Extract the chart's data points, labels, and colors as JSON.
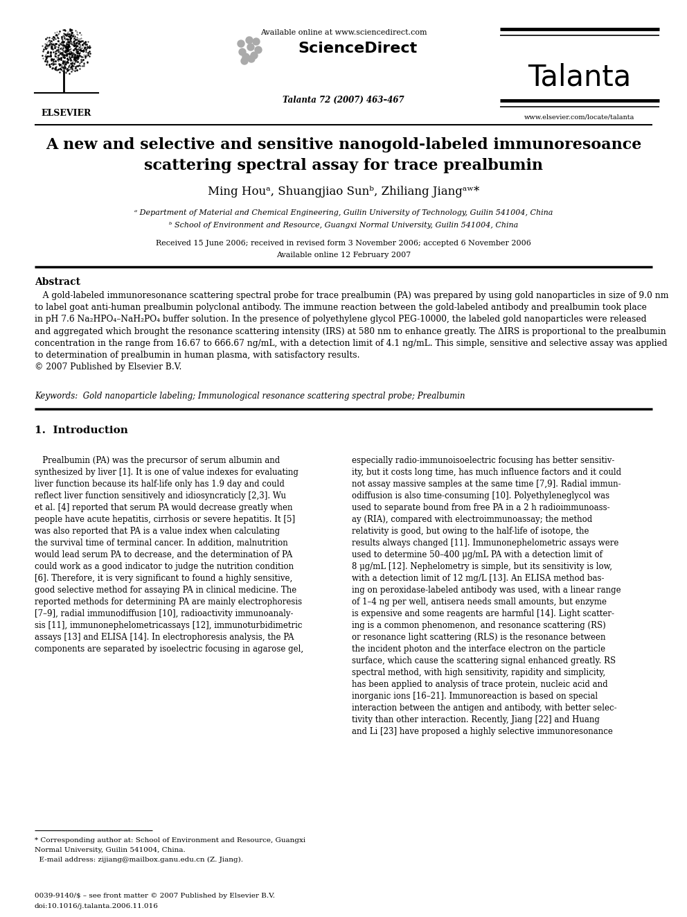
{
  "bg_color": "#ffffff",
  "available_online_header": "Available online at www.sciencedirect.com",
  "sciencedirect_text": "ScienceDirect",
  "journal_name": "Talanta",
  "journal_info": "Talanta 72 (2007) 463–467",
  "website": "www.elsevier.com/locate/talanta",
  "elsevier_text": "ELSEVIER",
  "title_line1": "A new and selective and sensitive nanogold-labeled immunoresoance",
  "title_line2": "scattering spectral assay for trace prealbumin",
  "authors_line": "Ming Houᵃ, Shuangjiao Sunᵇ, Zhiliang Jiangᵃʷ*",
  "affil_a": "ᵃ Department of Material and Chemical Engineering, Guilin University of Technology, Guilin 541004, China",
  "affil_b": "ᵇ School of Environment and Resource, Guangxi Normal University, Guilin 541004, China",
  "date_line": "Received 15 June 2006; received in revised form 3 November 2006; accepted 6 November 2006",
  "online_line": "Available online 12 February 2007",
  "abstract_head": "Abstract",
  "abstract_body": "   A gold-labeled immunoresonance scattering spectral probe for trace prealbumin (PA) was prepared by using gold nanoparticles in size of 9.0 nm\nto label goat anti-human prealbumin polyclonal antibody. The immune reaction between the gold-labeled antibody and prealbumin took place\nin pH 7.6 Na₂HPO₄–NaH₂PO₄ buffer solution. In the presence of polyethylene glycol PEG-10000, the labeled gold nanoparticles were released\nand aggregated which brought the resonance scattering intensity (IRS) at 580 nm to enhance greatly. The ΔIRS is proportional to the prealbumin\nconcentration in the range from 16.67 to 666.67 ng/mL, with a detection limit of 4.1 ng/mL. This simple, sensitive and selective assay was applied\nto determination of prealbumin in human plasma, with satisfactory results.\n© 2007 Published by Elsevier B.V.",
  "kw_line": "Keywords:  Gold nanoparticle labeling; Immunological resonance scattering spectral probe; Prealbumin",
  "sec1_head": "1.  Introduction",
  "left_col": "   Prealbumin (PA) was the precursor of serum albumin and\nsynthesized by liver [1]. It is one of value indexes for evaluating\nliver function because its half-life only has 1.9 day and could\nreflect liver function sensitively and idiosyncraticly [2,3]. Wu\net al. [4] reported that serum PA would decrease greatly when\npeople have acute hepatitis, cirrhosis or severe hepatitis. It [5]\nwas also reported that PA is a value index when calculating\nthe survival time of terminal cancer. In addition, malnutrition\nwould lead serum PA to decrease, and the determination of PA\ncould work as a good indicator to judge the nutrition condition\n[6]. Therefore, it is very significant to found a highly sensitive,\ngood selective method for assaying PA in clinical medicine. The\nreported methods for determining PA are mainly electrophoresis\n[7–9], radial immunodiffusion [10], radioactivity immunoanaly-\nsis [11], immunonephelometricassays [12], immunoturbidimetric\nassays [13] and ELISA [14]. In electrophoresis analysis, the PA\ncomponents are separated by isoelectric focusing in agarose gel,",
  "right_col": "especially radio-immunoisoelectric focusing has better sensitiv-\nity, but it costs long time, has much influence factors and it could\nnot assay massive samples at the same time [7,9]. Radial immun-\nodiffusion is also time-consuming [10]. Polyethyleneglycol was\nused to separate bound from free PA in a 2 h radioimmunoass-\nay (RIA), compared with electroimmunoassay; the method\nrelativity is good, but owing to the half-life of isotope, the\nresults always changed [11]. Immunonephelometric assays were\nused to determine 50–400 μg/mL PA with a detection limit of\n8 μg/mL [12]. Nephelometry is simple, but its sensitivity is low,\nwith a detection limit of 12 mg/L [13]. An ELISA method bas-\ning on peroxidase-labeled antibody was used, with a linear range\nof 1–4 ng per well, antisera needs small amounts, but enzyme\nis expensive and some reagents are harmful [14]. Light scatter-\ning is a common phenomenon, and resonance scattering (RS)\nor resonance light scattering (RLS) is the resonance between\nthe incident photon and the interface electron on the particle\nsurface, which cause the scattering signal enhanced greatly. RS\nspectral method, with high sensitivity, rapidity and simplicity,\nhas been applied to analysis of trace protein, nucleic acid and\ninorganic ions [16–21]. Immunoreaction is based on special\ninteraction between the antigen and antibody, with better selec-\ntivity than other interaction. Recently, Jiang [22] and Huang\nand Li [23] have proposed a highly selective immunoresonance",
  "footnote_line1": "* Corresponding author at: School of Environment and Resource, Guangxi",
  "footnote_line2": "Normal University, Guilin 541004, China.",
  "footnote_line3": "  E-mail address: zijiang@mailbox.ganu.edu.cn (Z. Jiang).",
  "footer_line1": "0039-9140/$ – see front matter © 2007 Published by Elsevier B.V.",
  "footer_line2": "doi:10.1016/j.talanta.2006.11.016"
}
